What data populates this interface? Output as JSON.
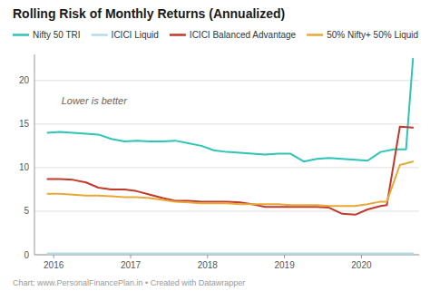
{
  "chart_data": {
    "type": "line",
    "title": "Rolling Risk of Monthly Returns (Annualized)",
    "annotation": "Lower is better",
    "footer": "Chart: www.PersonalFinancePlan.in • Created with Datawrapper",
    "xlim": [
      2015.75,
      2020.75
    ],
    "ylim": [
      0,
      23
    ],
    "xticks": [
      2016,
      2017,
      2018,
      2019,
      2020
    ],
    "yticks": [
      0,
      5,
      10,
      15,
      20
    ],
    "grid": true,
    "legend": "top",
    "series": [
      {
        "name": "Nifty 50 TRI",
        "color": "#2ec4b6",
        "x": [
          2015.92,
          2016.08,
          2016.25,
          2016.42,
          2016.58,
          2016.75,
          2016.92,
          2017.08,
          2017.25,
          2017.42,
          2017.58,
          2017.75,
          2017.92,
          2018.08,
          2018.25,
          2018.42,
          2018.58,
          2018.75,
          2018.92,
          2019.08,
          2019.25,
          2019.42,
          2019.58,
          2019.75,
          2019.92,
          2020.08,
          2020.25,
          2020.42,
          2020.58,
          2020.67
        ],
        "values": [
          14.0,
          14.1,
          14.0,
          13.9,
          13.8,
          13.3,
          13.0,
          13.1,
          13.0,
          13.0,
          13.1,
          12.8,
          12.5,
          12.0,
          11.8,
          11.7,
          11.6,
          11.5,
          11.6,
          11.6,
          10.7,
          11.0,
          11.1,
          11.0,
          10.9,
          10.8,
          11.8,
          12.1,
          12.1,
          22.5
        ]
      },
      {
        "name": "ICICI Liquid",
        "color": "#b0dde8",
        "x": [
          2015.92,
          2016.08,
          2016.25,
          2016.42,
          2016.58,
          2016.75,
          2016.92,
          2017.08,
          2017.25,
          2017.42,
          2017.58,
          2017.75,
          2017.92,
          2018.08,
          2018.25,
          2018.42,
          2018.58,
          2018.75,
          2018.92,
          2019.08,
          2019.25,
          2019.42,
          2019.58,
          2019.75,
          2019.92,
          2020.08,
          2020.25,
          2020.42,
          2020.58,
          2020.67
        ],
        "values": [
          0.15,
          0.15,
          0.15,
          0.15,
          0.15,
          0.15,
          0.15,
          0.15,
          0.15,
          0.15,
          0.15,
          0.15,
          0.15,
          0.15,
          0.15,
          0.15,
          0.15,
          0.15,
          0.15,
          0.15,
          0.15,
          0.15,
          0.15,
          0.15,
          0.15,
          0.15,
          0.15,
          0.15,
          0.15,
          0.15
        ]
      },
      {
        "name": "ICICI Balanced Advantage",
        "color": "#c0392b",
        "x": [
          2015.92,
          2016.08,
          2016.25,
          2016.42,
          2016.58,
          2016.75,
          2016.92,
          2017.08,
          2017.25,
          2017.42,
          2017.58,
          2017.75,
          2017.92,
          2018.08,
          2018.25,
          2018.42,
          2018.58,
          2018.75,
          2018.92,
          2019.08,
          2019.25,
          2019.42,
          2019.58,
          2019.75,
          2019.92,
          2020.08,
          2020.25,
          2020.33,
          2020.5,
          2020.67
        ],
        "values": [
          8.7,
          8.7,
          8.6,
          8.3,
          7.7,
          7.5,
          7.5,
          7.3,
          6.9,
          6.5,
          6.2,
          6.2,
          6.1,
          6.1,
          6.1,
          6.0,
          5.8,
          5.5,
          5.5,
          5.5,
          5.5,
          5.5,
          5.4,
          4.7,
          4.6,
          5.2,
          5.6,
          5.7,
          14.7,
          14.6
        ]
      },
      {
        "name": "50% Nifty+ 50% Liquid",
        "color": "#e8a838",
        "x": [
          2015.92,
          2016.08,
          2016.25,
          2016.42,
          2016.58,
          2016.75,
          2016.92,
          2017.08,
          2017.25,
          2017.42,
          2017.58,
          2017.75,
          2017.92,
          2018.08,
          2018.25,
          2018.42,
          2018.58,
          2018.75,
          2018.92,
          2019.08,
          2019.25,
          2019.42,
          2019.58,
          2019.75,
          2019.92,
          2020.08,
          2020.25,
          2020.33,
          2020.5,
          2020.67
        ],
        "values": [
          7.0,
          7.0,
          6.9,
          6.8,
          6.8,
          6.7,
          6.6,
          6.6,
          6.5,
          6.3,
          6.1,
          6.0,
          5.9,
          5.9,
          5.9,
          5.8,
          5.8,
          5.8,
          5.8,
          5.7,
          5.7,
          5.7,
          5.6,
          5.6,
          5.6,
          5.8,
          6.1,
          6.1,
          10.3,
          10.7
        ]
      }
    ]
  }
}
